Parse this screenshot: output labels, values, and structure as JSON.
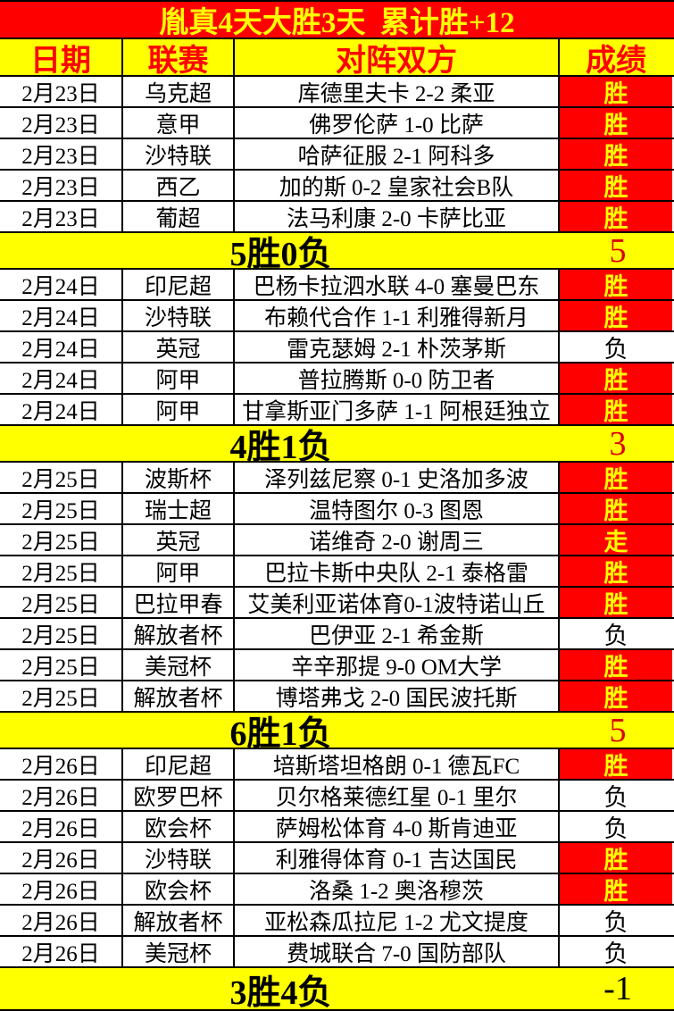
{
  "title": "胤真4天大胜3天  累计胜+12",
  "columns": [
    "日期",
    "联赛",
    "对阵双方",
    "成绩"
  ],
  "colors": {
    "banner_bg": "#fe0000",
    "banner_text": "#ffff00",
    "header_bg": "#ffff00",
    "header_text": "#fe0000",
    "win_bg": "#fe0000",
    "win_text": "#ffff00",
    "loss_bg": "#ffffff",
    "loss_text": "#000000",
    "summary_bg": "#ffff00",
    "summary_score_red": "#dd0000",
    "summary_score_black": "#000000"
  },
  "groups": [
    {
      "rows": [
        {
          "date": "2月23日",
          "league": "乌克超",
          "match": "库德里夫卡 2-2 柔亚",
          "result": "胜",
          "result_style": "red"
        },
        {
          "date": "2月23日",
          "league": "意甲",
          "match": "佛罗伦萨 1-0 比萨",
          "result": "胜",
          "result_style": "red"
        },
        {
          "date": "2月23日",
          "league": "沙特联",
          "match": "哈萨征服 2-1 阿科多",
          "result": "胜",
          "result_style": "red"
        },
        {
          "date": "2月23日",
          "league": "西乙",
          "match": "加的斯 0-2 皇家社会B队",
          "result": "胜",
          "result_style": "red"
        },
        {
          "date": "2月23日",
          "league": "葡超",
          "match": "法马利康 2-0 卡萨比亚",
          "result": "胜",
          "result_style": "red"
        }
      ],
      "summary": {
        "label": "5胜0负",
        "score": "5",
        "score_color": "red"
      }
    },
    {
      "rows": [
        {
          "date": "2月24日",
          "league": "印尼超",
          "match": "巴杨卡拉泗水联 4-0 塞曼巴东",
          "result": "胜",
          "result_style": "red"
        },
        {
          "date": "2月24日",
          "league": "沙特联",
          "match": "布赖代合作 1-1 利雅得新月",
          "result": "胜",
          "result_style": "red"
        },
        {
          "date": "2月24日",
          "league": "英冠",
          "match": "雷克瑟姆 2-1 朴茨茅斯",
          "result": "负",
          "result_style": "plain"
        },
        {
          "date": "2月24日",
          "league": "阿甲",
          "match": "普拉腾斯 0-0 防卫者",
          "result": "胜",
          "result_style": "red"
        },
        {
          "date": "2月24日",
          "league": "阿甲",
          "match": "甘拿斯亚门多萨 1-1 阿根廷独立",
          "result": "胜",
          "result_style": "red"
        }
      ],
      "summary": {
        "label": "4胜1负",
        "score": "3",
        "score_color": "red"
      }
    },
    {
      "rows": [
        {
          "date": "2月25日",
          "league": "波斯杯",
          "match": "泽列兹尼察 0-1 史洛加多波",
          "result": "胜",
          "result_style": "red"
        },
        {
          "date": "2月25日",
          "league": "瑞士超",
          "match": "温特图尔 0-3 图恩",
          "result": "胜",
          "result_style": "red"
        },
        {
          "date": "2月25日",
          "league": "英冠",
          "match": "诺维奇 2-0 谢周三",
          "result": "走",
          "result_style": "red"
        },
        {
          "date": "2月25日",
          "league": "阿甲",
          "match": "巴拉卡斯中央队 2-1 泰格雷",
          "result": "胜",
          "result_style": "red"
        },
        {
          "date": "2月25日",
          "league": "巴拉甲春",
          "match": "艾美利亚诺体育0-1波特诺山丘",
          "result": "胜",
          "result_style": "red"
        },
        {
          "date": "2月25日",
          "league": "解放者杯",
          "match": "巴伊亚 2-1 希金斯",
          "result": "负",
          "result_style": "plain"
        },
        {
          "date": "2月25日",
          "league": "美冠杯",
          "match": "辛辛那提 9-0 OM大学",
          "result": "胜",
          "result_style": "red"
        },
        {
          "date": "2月25日",
          "league": "解放者杯",
          "match": "博塔弗戈 2-0 国民波托斯",
          "result": "胜",
          "result_style": "red"
        }
      ],
      "summary": {
        "label": "6胜1负",
        "score": "5",
        "score_color": "red"
      }
    },
    {
      "rows": [
        {
          "date": "2月26日",
          "league": "印尼超",
          "match": "培斯塔坦格朗 0-1 德瓦FC",
          "result": "胜",
          "result_style": "red"
        },
        {
          "date": "2月26日",
          "league": "欧罗巴杯",
          "match": "贝尔格莱德红星 0-1 里尔",
          "result": "负",
          "result_style": "plain"
        },
        {
          "date": "2月26日",
          "league": "欧会杯",
          "match": "萨姆松体育 4-0 斯肯迪亚",
          "result": "负",
          "result_style": "plain"
        },
        {
          "date": "2月26日",
          "league": "沙特联",
          "match": "利雅得体育 0-1 吉达国民",
          "result": "胜",
          "result_style": "red"
        },
        {
          "date": "2月26日",
          "league": "欧会杯",
          "match": "洛桑 1-2 奥洛穆茨",
          "result": "胜",
          "result_style": "red"
        },
        {
          "date": "2月26日",
          "league": "解放者杯",
          "match": "亚松森瓜拉尼 1-2 尤文提度",
          "result": "负",
          "result_style": "plain"
        },
        {
          "date": "2月26日",
          "league": "美冠杯",
          "match": "费城联合 7-0 国防部队",
          "result": "负",
          "result_style": "plain"
        }
      ],
      "summary": {
        "label": "3胜4负",
        "score": "-1",
        "score_color": "black"
      }
    }
  ]
}
